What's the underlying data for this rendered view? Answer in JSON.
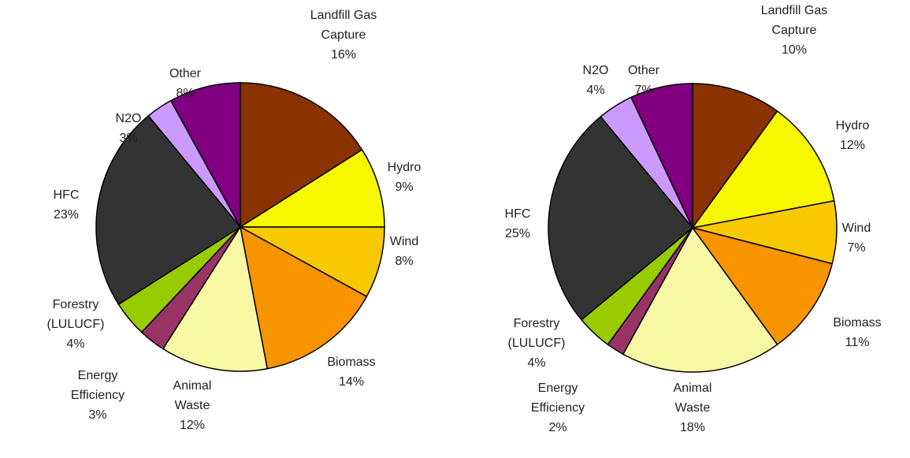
{
  "chart_data": [
    {
      "type": "pie",
      "categories": [
        "Landfill Gas\nCapture",
        "Hydro",
        "Wind",
        "Biomass",
        "Animal\nWaste",
        "Energy\nEfficiency",
        "Forestry\n(LULUCF)",
        "HFC",
        "N2O",
        "Other"
      ],
      "values": [
        16,
        9,
        8,
        14,
        12,
        3,
        4,
        23,
        3,
        8
      ],
      "value_labels": [
        "16%",
        "9%",
        "8%",
        "14%",
        "12%",
        "3%",
        "4%",
        "23%",
        "3%",
        "8%"
      ],
      "colors": [
        "#8b3300",
        "#f7f700",
        "#f8c800",
        "#f79400",
        "#f8f8a4",
        "#993366",
        "#99cc00",
        "#333333",
        "#cc99ff",
        "#800080"
      ]
    },
    {
      "type": "pie",
      "categories": [
        "Landfill Gas\nCapture",
        "Hydro",
        "Wind",
        "Biomass",
        "Animal\nWaste",
        "Energy\nEfficiency",
        "Forestry\n(LULUCF)",
        "HFC",
        "N2O",
        "Other"
      ],
      "values": [
        10,
        12,
        7,
        11,
        18,
        2,
        4,
        25,
        4,
        7
      ],
      "value_labels": [
        "10%",
        "12%",
        "7%",
        "11%",
        "18%",
        "2%",
        "4%",
        "25%",
        "4%",
        "7%"
      ],
      "colors": [
        "#8b3300",
        "#f7f700",
        "#f8c800",
        "#f79400",
        "#f8f8a4",
        "#993366",
        "#99cc00",
        "#333333",
        "#cc99ff",
        "#800080"
      ]
    }
  ]
}
